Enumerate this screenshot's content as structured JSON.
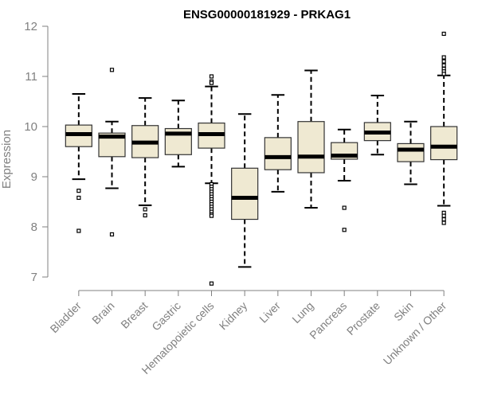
{
  "chart_data": {
    "type": "box",
    "title": "ENSG00000181929 - PRKAG1",
    "xlabel": "",
    "ylabel": "Expression",
    "ylim": [
      7,
      12
    ],
    "yticks": [
      7,
      8,
      9,
      10,
      11,
      12
    ],
    "grid": false,
    "colors": {
      "box_fill": "#efe9d2",
      "box_stroke": "#333333",
      "median": "#000000",
      "axis": "#808080",
      "tick_label": "#808080",
      "title": "#000000"
    },
    "categories": [
      "Bladder",
      "Brain",
      "Breast",
      "Gastric",
      "Hematopoietic cells",
      "Kidney",
      "Liver",
      "Lung",
      "Pancreas",
      "Prostate",
      "Skin",
      "Unknown / Other"
    ],
    "boxes": [
      {
        "category": "Bladder",
        "whisker_low": 8.95,
        "q1": 9.6,
        "median": 9.85,
        "q3": 10.03,
        "whisker_high": 10.65,
        "outliers": [
          8.72,
          8.58,
          7.92
        ]
      },
      {
        "category": "Brain",
        "whisker_low": 8.77,
        "q1": 9.4,
        "median": 9.8,
        "q3": 9.87,
        "whisker_high": 10.1,
        "outliers": [
          11.13,
          7.85
        ]
      },
      {
        "category": "Breast",
        "whisker_low": 8.43,
        "q1": 9.38,
        "median": 9.68,
        "q3": 10.02,
        "whisker_high": 10.57,
        "outliers": [
          8.35,
          8.23
        ]
      },
      {
        "category": "Gastric",
        "whisker_low": 9.2,
        "q1": 9.44,
        "median": 9.86,
        "q3": 9.96,
        "whisker_high": 10.52,
        "outliers": []
      },
      {
        "category": "Hematopoietic cells",
        "whisker_low": 8.87,
        "q1": 9.57,
        "median": 9.85,
        "q3": 10.07,
        "whisker_high": 10.8,
        "outliers": [
          11.0,
          10.9,
          10.87,
          8.85,
          8.8,
          8.75,
          8.7,
          8.65,
          8.6,
          8.55,
          8.5,
          8.45,
          8.4,
          8.35,
          8.3,
          8.25,
          8.22,
          6.87
        ]
      },
      {
        "category": "Kidney",
        "whisker_low": 7.2,
        "q1": 8.15,
        "median": 8.58,
        "q3": 9.17,
        "whisker_high": 10.25,
        "outliers": []
      },
      {
        "category": "Liver",
        "whisker_low": 8.7,
        "q1": 9.14,
        "median": 9.39,
        "q3": 9.78,
        "whisker_high": 10.63,
        "outliers": []
      },
      {
        "category": "Lung",
        "whisker_low": 8.38,
        "q1": 9.08,
        "median": 9.4,
        "q3": 10.1,
        "whisker_high": 11.12,
        "outliers": []
      },
      {
        "category": "Pancreas",
        "whisker_low": 8.92,
        "q1": 9.35,
        "median": 9.42,
        "q3": 9.68,
        "whisker_high": 9.94,
        "outliers": [
          8.38,
          7.94
        ]
      },
      {
        "category": "Prostate",
        "whisker_low": 9.44,
        "q1": 9.72,
        "median": 9.88,
        "q3": 10.08,
        "whisker_high": 10.62,
        "outliers": []
      },
      {
        "category": "Skin",
        "whisker_low": 8.85,
        "q1": 9.3,
        "median": 9.54,
        "q3": 9.66,
        "whisker_high": 10.1,
        "outliers": []
      },
      {
        "category": "Unknown / Other",
        "whisker_low": 8.42,
        "q1": 9.34,
        "median": 9.6,
        "q3": 10.0,
        "whisker_high": 11.02,
        "outliers": [
          11.85,
          11.38,
          11.3,
          11.22,
          11.15,
          11.1,
          11.05,
          8.28,
          8.22,
          8.15,
          8.08
        ]
      }
    ]
  }
}
